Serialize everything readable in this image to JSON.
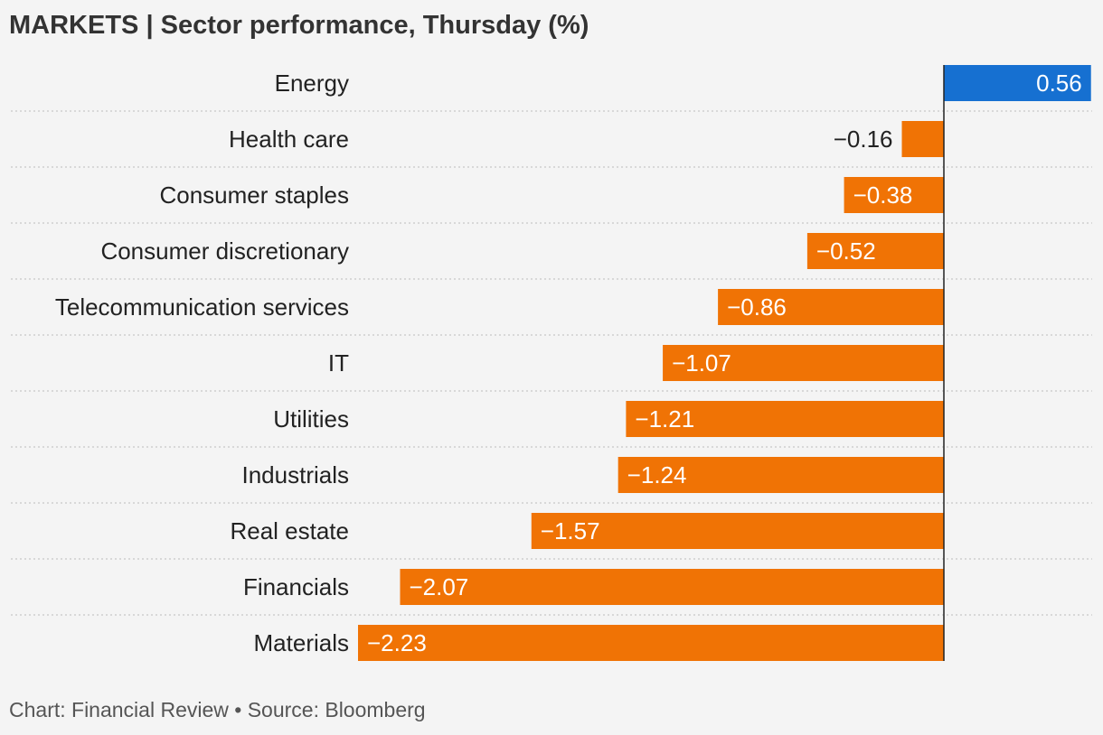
{
  "title": "MARKETS | Sector performance, Thursday (%)",
  "source": "Chart: Financial Review • Source: Bloomberg",
  "colors": {
    "positive": "#1670d1",
    "negative": "#f07305",
    "axis": "#222222",
    "grid": "#c8c8c8"
  },
  "chart_data": {
    "type": "bar",
    "orientation": "horizontal",
    "title": "MARKETS | Sector performance, Thursday (%)",
    "categories": [
      "Energy",
      "Health care",
      "Consumer staples",
      "Consumer discretionary",
      "Telecommunication services",
      "IT",
      "Utilities",
      "Industrials",
      "Real estate",
      "Financials",
      "Materials"
    ],
    "values": [
      0.56,
      -0.16,
      -0.38,
      -0.52,
      -0.86,
      -1.07,
      -1.21,
      -1.24,
      -1.57,
      -2.07,
      -2.23
    ],
    "labels": [
      "0.56",
      "−0.16",
      "−0.38",
      "−0.52",
      "−0.86",
      "−1.07",
      "−1.21",
      "−1.24",
      "−1.57",
      "−2.07",
      "−2.23"
    ],
    "xlim": [
      -2.23,
      0.56
    ],
    "grid": true,
    "legend": "none"
  }
}
